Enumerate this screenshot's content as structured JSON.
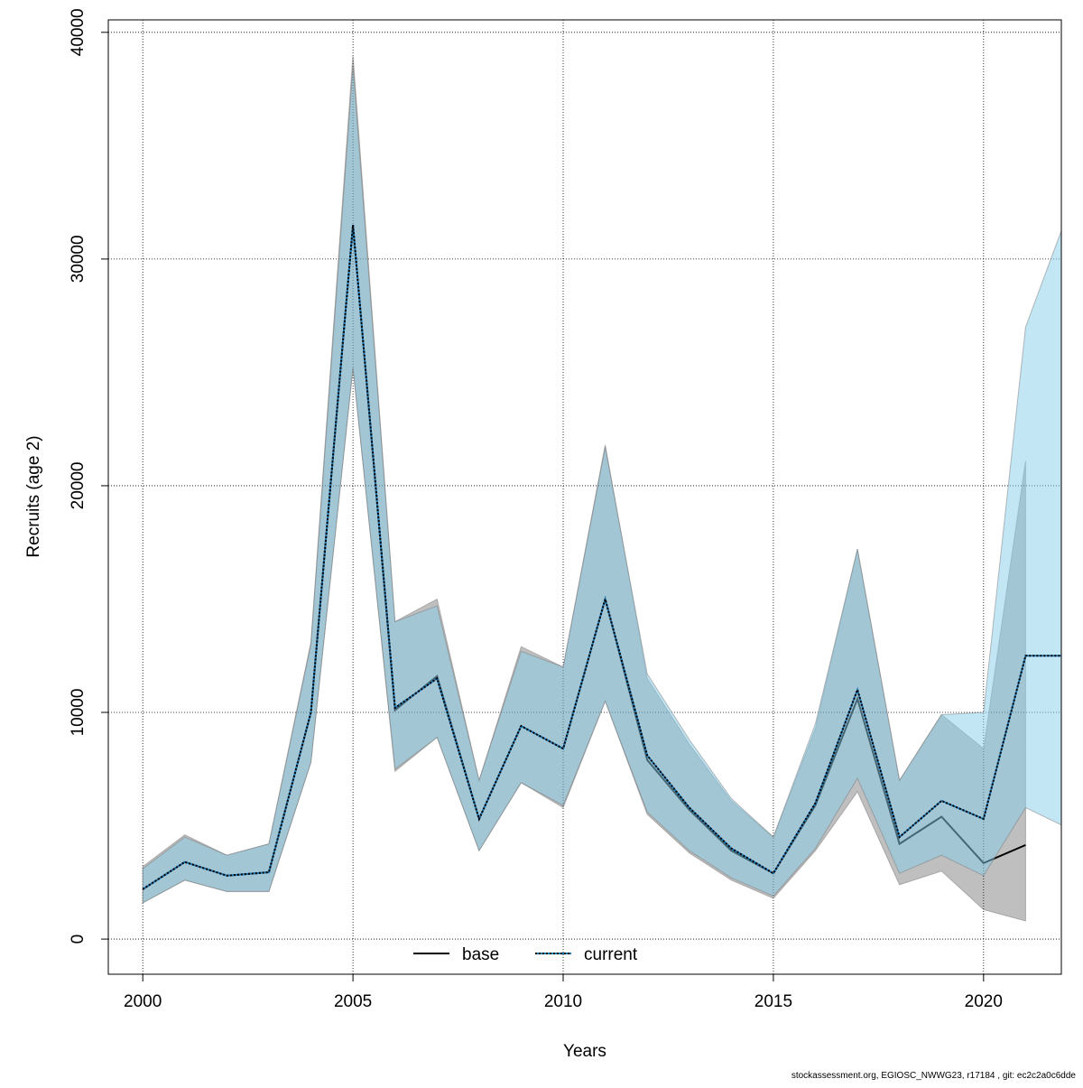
{
  "chart_data": {
    "type": "line",
    "title": "",
    "xlabel": "Years",
    "ylabel": "Recruits (age 2)",
    "xlim": [
      1999.18,
      2021.85
    ],
    "ylim": [
      -1550,
      40550
    ],
    "xticks": [
      2000,
      2005,
      2010,
      2015,
      2020
    ],
    "yticks": [
      0,
      10000,
      20000,
      30000,
      40000
    ],
    "grid": true,
    "legend_placement": "bottom",
    "series": [
      {
        "name": "base",
        "color": "#000000",
        "band_color": "rgba(0,0,0,0.25)",
        "line_style": "solid",
        "x": [
          2000,
          2001,
          2002,
          2003,
          2004,
          2005,
          2006,
          2007,
          2008,
          2009,
          2010,
          2011,
          2012,
          2013,
          2014,
          2015,
          2016,
          2017,
          2018,
          2019,
          2020,
          2021
        ],
        "values": [
          2200,
          3400,
          2800,
          2950,
          10000,
          31500,
          10100,
          11600,
          5300,
          9400,
          8400,
          15000,
          7900,
          5700,
          3900,
          2900,
          5900,
          10600,
          4200,
          5400,
          3350,
          4150
        ],
        "lower": [
          1600,
          2600,
          2100,
          2100,
          7800,
          25200,
          7400,
          8900,
          3900,
          6900,
          5800,
          10500,
          5500,
          3800,
          2600,
          1800,
          3900,
          6500,
          2400,
          3000,
          1300,
          800
        ],
        "upper": [
          3200,
          4600,
          3700,
          4200,
          13100,
          39000,
          14000,
          15000,
          7000,
          12900,
          12000,
          21800,
          11500,
          8600,
          6100,
          4500,
          9300,
          17200,
          7000,
          9900,
          8400,
          21100
        ]
      },
      {
        "name": "current",
        "color": "#1f78b4",
        "band_color": "rgba(135,206,235,0.5)",
        "line_style": "dotted",
        "x": [
          2000,
          2001,
          2002,
          2003,
          2004,
          2005,
          2006,
          2007,
          2008,
          2009,
          2010,
          2011,
          2012,
          2013,
          2014,
          2015,
          2016,
          2017,
          2018,
          2019,
          2020,
          2021,
          2022
        ],
        "values": [
          2200,
          3400,
          2800,
          2950,
          10000,
          31500,
          10200,
          11500,
          5300,
          9400,
          8400,
          15000,
          8100,
          5800,
          4000,
          2900,
          6000,
          11000,
          4500,
          6100,
          5300,
          12500,
          12500
        ],
        "lower": [
          1600,
          2600,
          2100,
          2100,
          7800,
          25200,
          7500,
          8900,
          3900,
          6900,
          5900,
          10500,
          5600,
          3900,
          2700,
          1900,
          4000,
          7100,
          2900,
          3700,
          2800,
          5800,
          4900
        ],
        "upper": [
          3100,
          4500,
          3700,
          4200,
          13000,
          38500,
          14000,
          14700,
          7000,
          12700,
          12000,
          21700,
          11700,
          8800,
          6200,
          4500,
          9500,
          17200,
          7000,
          9900,
          10000,
          27000,
          32000
        ]
      }
    ]
  },
  "footer": "stockassessment.org, EGIOSC_NWWG23, r17184 , git: ec2c2a0c6dde"
}
